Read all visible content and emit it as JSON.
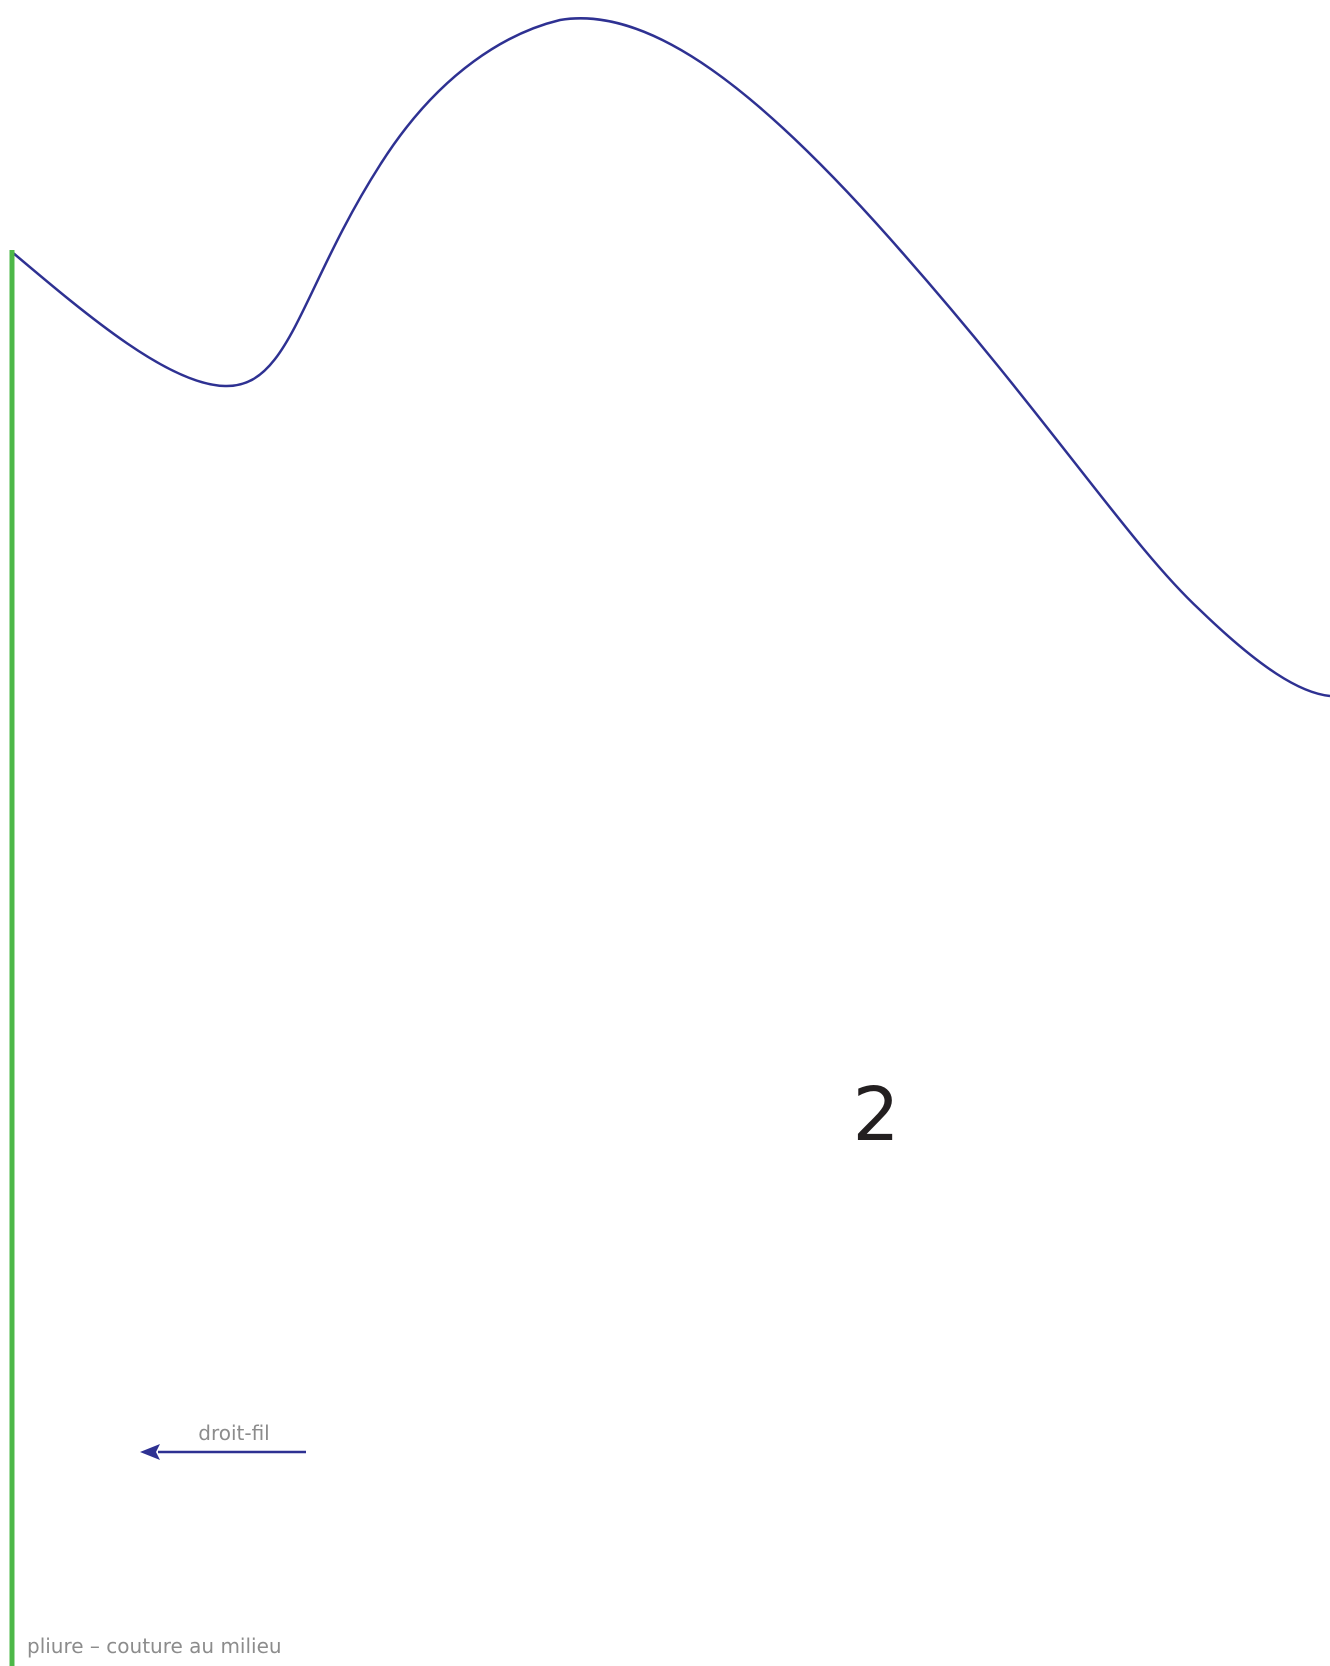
{
  "pattern": {
    "piece_number": "2",
    "grainline_label": "droit-fil",
    "fold_label": "pliure – couture au milieu",
    "colors": {
      "cut_line": "#2e3192",
      "fold_line": "#4db848",
      "grain_arrow": "#2e3192",
      "piece_number": "#231f20",
      "label_text": "#8c8c8c"
    }
  }
}
